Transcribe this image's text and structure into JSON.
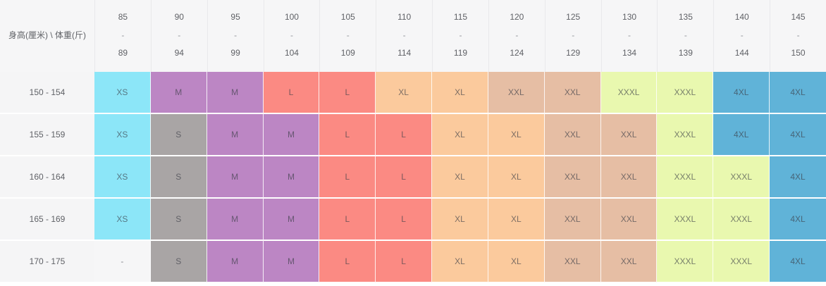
{
  "table": {
    "corner_label": "身高(厘米) \\ 体重(斤)",
    "weight_columns": [
      {
        "from": "85",
        "dash": "-",
        "to": "89"
      },
      {
        "from": "90",
        "dash": "-",
        "to": "94"
      },
      {
        "from": "95",
        "dash": "-",
        "to": "99"
      },
      {
        "from": "100",
        "dash": "-",
        "to": "104"
      },
      {
        "from": "105",
        "dash": "-",
        "to": "109"
      },
      {
        "from": "110",
        "dash": "-",
        "to": "114"
      },
      {
        "from": "115",
        "dash": "-",
        "to": "119"
      },
      {
        "from": "120",
        "dash": "-",
        "to": "124"
      },
      {
        "from": "125",
        "dash": "-",
        "to": "129"
      },
      {
        "from": "130",
        "dash": "-",
        "to": "134"
      },
      {
        "from": "135",
        "dash": "-",
        "to": "139"
      },
      {
        "from": "140",
        "dash": "-",
        "to": "144"
      },
      {
        "from": "145",
        "dash": "-",
        "to": "150"
      }
    ],
    "rows": [
      {
        "height_range": "150 - 154",
        "sizes": [
          "XS",
          "M",
          "M",
          "L",
          "L",
          "XL",
          "XL",
          "XXL",
          "XXL",
          "XXXL",
          "XXXL",
          "4XL",
          "4XL"
        ]
      },
      {
        "height_range": "155 - 159",
        "sizes": [
          "XS",
          "S",
          "M",
          "M",
          "L",
          "L",
          "XL",
          "XL",
          "XXL",
          "XXL",
          "XXXL",
          "4XL",
          "4XL"
        ]
      },
      {
        "height_range": "160 - 164",
        "sizes": [
          "XS",
          "S",
          "M",
          "M",
          "L",
          "L",
          "XL",
          "XL",
          "XXL",
          "XXL",
          "XXXL",
          "XXXL",
          "4XL"
        ]
      },
      {
        "height_range": "165 - 169",
        "sizes": [
          "XS",
          "S",
          "M",
          "M",
          "L",
          "L",
          "XL",
          "XL",
          "XXL",
          "XXL",
          "XXXL",
          "XXXL",
          "4XL"
        ]
      },
      {
        "height_range": "170 - 175",
        "sizes": [
          "-",
          "S",
          "M",
          "M",
          "L",
          "L",
          "XL",
          "XL",
          "XXL",
          "XXL",
          "XXXL",
          "XXXL",
          "4XL"
        ]
      }
    ],
    "size_colors": {
      "XS": "#8ce6f8",
      "S": "#a9a5a5",
      "M": "#bc86c4",
      "L": "#fb8a83",
      "XL": "#fbca9d",
      "XXL": "#e6bea4",
      "XXXL": "#e9f8af",
      "4XL": "#60b3d8",
      "-": "#f6f6f7"
    },
    "header_bg": "#f6f6f7",
    "label_bg": "#f5f5f6",
    "text_color": "#5f6166"
  }
}
